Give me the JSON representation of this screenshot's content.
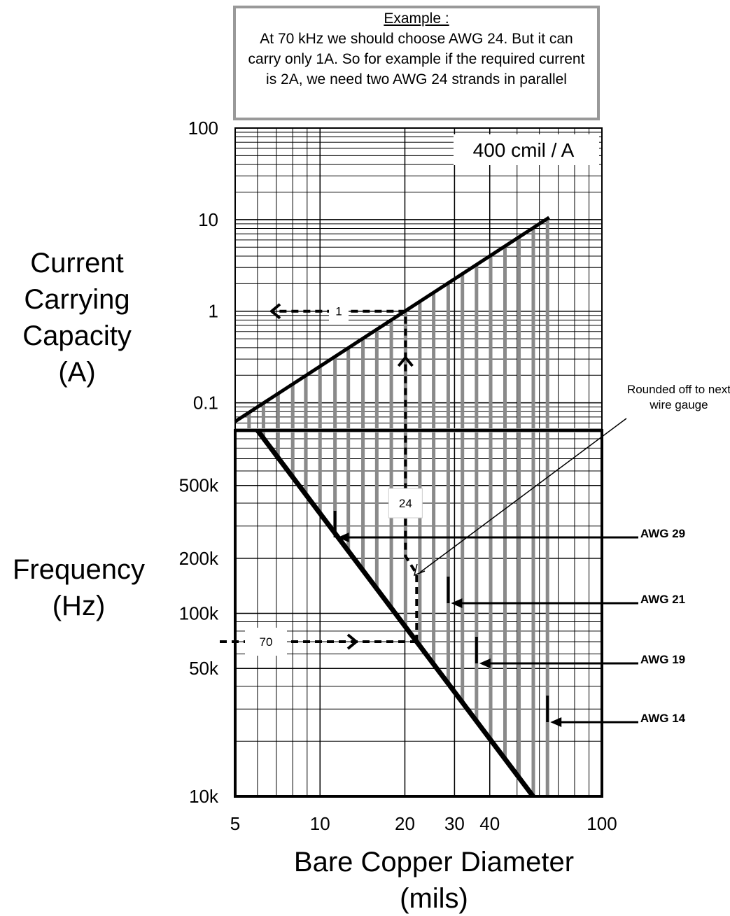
{
  "example": {
    "title": "Example :",
    "text": "At 70 kHz we should choose AWG 24. But it can carry only 1A. So for example if the required current is 2A, we need two AWG 24 strands in parallel",
    "frequency": 70000,
    "frequency_label": "70",
    "gauge_label": "24",
    "diameter": 20.1,
    "current": 1
  },
  "chart_data": [
    {
      "type": "line",
      "y_label": "Current Carrying Capacity (A)",
      "annotation": "400 cmil / A",
      "yscale": "log",
      "xscale": "log",
      "xlim": [
        5,
        100
      ],
      "ylim": [
        0.05,
        100
      ],
      "yticks": [
        100,
        10,
        1,
        0.1
      ],
      "grid": true,
      "series": [
        {
          "color": "#000000",
          "x": [
            5,
            65
          ],
          "values": [
            0.0625,
            10.56
          ]
        }
      ]
    },
    {
      "type": "line",
      "y_label": "Frequency (Hz)",
      "x_label": "Bare Copper Diameter (mils)",
      "yscale": "log",
      "xscale": "log",
      "xlim": [
        5,
        100
      ],
      "ylim": [
        10000,
        1000000
      ],
      "xticks": [
        5,
        10,
        20,
        30,
        40,
        100
      ],
      "yticks": [
        {
          "value": 500000,
          "label": "500k"
        },
        {
          "value": 200000,
          "label": "200k"
        },
        {
          "value": 100000,
          "label": "100k"
        },
        {
          "value": 50000,
          "label": "50k"
        },
        {
          "value": 10000,
          "label": "10k"
        }
      ],
      "grid": true,
      "series": [
        {
          "color": "#000000",
          "x": [
            6,
            57
          ],
          "values": [
            1000000,
            10000
          ]
        }
      ],
      "gauge_lines": {
        "color": "#8a8a8a",
        "x": [
          5.6,
          6.3,
          7.1,
          8.0,
          8.9,
          10.0,
          11.3,
          12.6,
          14.2,
          15.9,
          17.9,
          20.1,
          22.6,
          25.3,
          28.5,
          32.0,
          35.9,
          40.3,
          45.3,
          50.8,
          57.1,
          64.1
        ]
      },
      "annotations": [
        {
          "label": "AWG 29",
          "x": 11.3
        },
        {
          "label": "AWG 21",
          "x": 28.5
        },
        {
          "label": "AWG 19",
          "x": 35.9
        },
        {
          "label": "AWG 14",
          "x": 64.1
        }
      ],
      "note": "Rounded off to next wire gauge"
    }
  ]
}
